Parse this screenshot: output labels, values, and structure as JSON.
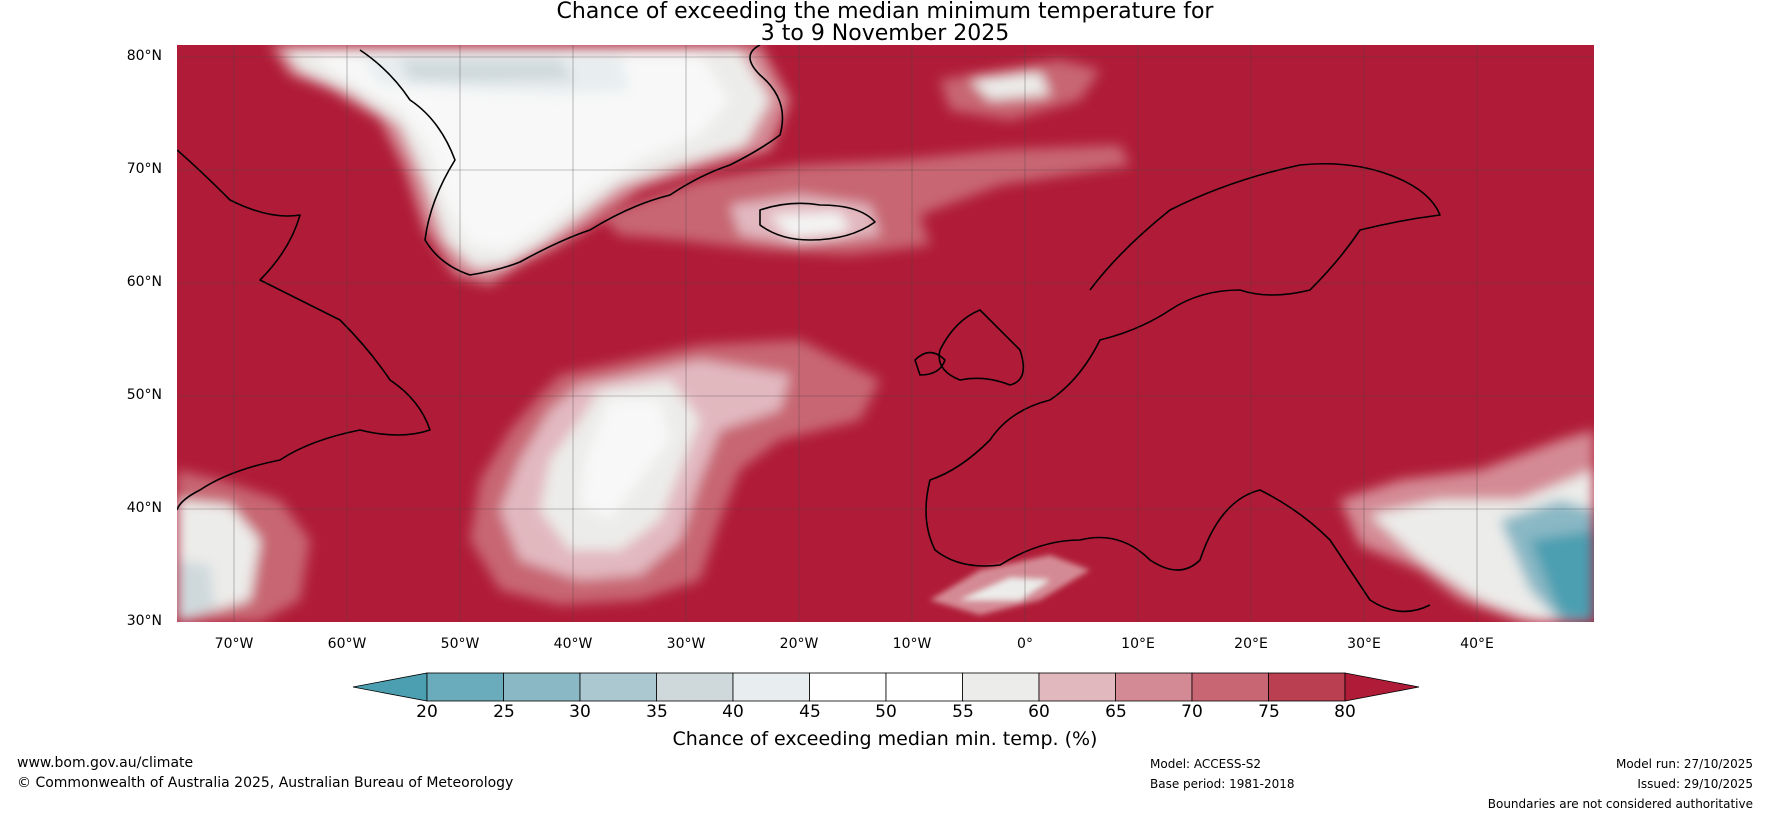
{
  "title": {
    "line1": "Chance of exceeding the median minimum temperature for",
    "line2": "3 to 9 November 2025"
  },
  "map": {
    "region": "North Atlantic and Europe",
    "dominant_color": "#b01c37",
    "latitude_labels": [
      "80°N",
      "70°N",
      "60°N",
      "50°N",
      "40°N",
      "30°N"
    ],
    "longitude_labels": [
      "70°W",
      "60°W",
      "50°W",
      "40°W",
      "30°W",
      "20°W",
      "10°W",
      "0°",
      "10°E",
      "20°E",
      "30°E",
      "40°E"
    ]
  },
  "colorbar": {
    "title": "Chance of exceeding median min. temp. (%)",
    "tick_labels": [
      "20",
      "25",
      "30",
      "35",
      "40",
      "45",
      "50",
      "55",
      "60",
      "65",
      "70",
      "75",
      "80"
    ],
    "colors": [
      "#4b9fb1",
      "#6aacbb",
      "#8ab8c5",
      "#abc8d0",
      "#cfd9dc",
      "#e8eef0",
      "#ffffff",
      "#ffffff",
      "#ececea",
      "#e2b8bf",
      "#d48a94",
      "#c86673",
      "#ba3f50",
      "#b01c37"
    ]
  },
  "footer": {
    "website": "www.bom.gov.au/climate",
    "copyright": "© Commonwealth of Australia 2025, Australian Bureau of Meteorology",
    "model": "Model: ACCESS-S2",
    "base_period": "Base period: 1981-2018",
    "model_run": "Model run: 27/10/2025",
    "issued": "Issued: 29/10/2025",
    "disclaimer": "Boundaries are not considered authoritative"
  }
}
